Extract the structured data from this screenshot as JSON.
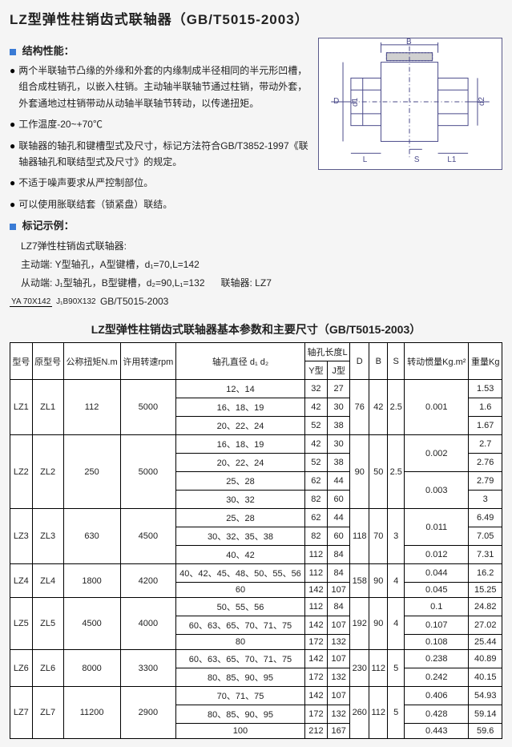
{
  "title": "LZ型弹性柱销齿式联轴器（GB/T5015-2003）",
  "sections": {
    "structural": "结构性能：",
    "example": "标记示例："
  },
  "bullets": [
    "两个半联轴节凸缘的外缘和外套的内缘制成半径相同的半元形凹槽，组合成柱销孔，以嵌入柱销。主动轴半联轴节通过柱销，带动外套，外套通地过柱销带动从动轴半联轴节转动，以传递扭矩。",
    "工作温度-20~+70℃",
    "联轴器的轴孔和键槽型式及尺寸，标记方法符合GB/T3852-1997《联轴器轴孔和联结型式及尺寸》的规定。",
    "不适于噪声要求从严控制部位。",
    "可以使用胀联结套（锁紧盘）联结。"
  ],
  "example": {
    "line1": "LZ7弹性柱销齿式联轴器:",
    "line2": "主动端: Y型轴孔，A型键槽，d₁=70,L=142",
    "line3": "从动端: J₁型轴孔，B型键槽，d₂=90,L₁=132",
    "line4_prefix": "联轴器: LZ7",
    "frac_top": "YA 70X142",
    "frac_bot": "J₁B90X132",
    "line4_suffix": "GB/T5015-2003"
  },
  "diagram_labels": {
    "B": "B",
    "D": "D",
    "d1": "d1",
    "d2": "d2",
    "L": "L",
    "S": "S",
    "L1": "L1"
  },
  "table_title": "LZ型弹性柱销齿式联轴器基本参数和主要尺寸（GB/T5015-2003）",
  "table": {
    "headers": {
      "model": "型号",
      "orig": "原型号",
      "torque": "公称扭矩N.m",
      "rpm": "许用转速rpm",
      "bore": "轴孔直径 d₁ d₂",
      "boreLen": "轴孔长度L",
      "Y": "Y型",
      "J": "J型",
      "D": "D",
      "B": "B",
      "S": "S",
      "inertia": "转动惯量Kg.m²",
      "weight": "重量Kg"
    },
    "rows": [
      {
        "model": "LZ1",
        "orig": "ZL1",
        "torque": "112",
        "rpm": "5000",
        "D": "76",
        "B": "42",
        "S": "2.5",
        "sub": [
          {
            "bore": "12、14",
            "Y": "32",
            "J": "27",
            "inertia": "0.001",
            "weight": "1.53",
            "ispan": 3
          },
          {
            "bore": "16、18、19",
            "Y": "42",
            "J": "30",
            "weight": "1.6"
          },
          {
            "bore": "20、22、24",
            "Y": "52",
            "J": "38",
            "weight": "1.67"
          }
        ]
      },
      {
        "model": "LZ2",
        "orig": "ZL2",
        "torque": "250",
        "rpm": "5000",
        "D": "90",
        "B": "50",
        "S": "2.5",
        "sub": [
          {
            "bore": "16、18、19",
            "Y": "42",
            "J": "30",
            "inertia": "0.002",
            "weight": "2.7",
            "ispan": 2
          },
          {
            "bore": "20、22、24",
            "Y": "52",
            "J": "38",
            "weight": "2.76"
          },
          {
            "bore": "25、28",
            "Y": "62",
            "J": "44",
            "inertia": "0.003",
            "weight": "2.79",
            "ispan": 2
          },
          {
            "bore": "30、32",
            "Y": "82",
            "J": "60",
            "weight": "3"
          }
        ]
      },
      {
        "model": "LZ3",
        "orig": "ZL3",
        "torque": "630",
        "rpm": "4500",
        "D": "118",
        "B": "70",
        "S": "3",
        "sub": [
          {
            "bore": "25、28",
            "Y": "62",
            "J": "44",
            "inertia": "0.011",
            "weight": "6.49",
            "ispan": 2
          },
          {
            "bore": "30、32、35、38",
            "Y": "82",
            "J": "60",
            "weight": "7.05"
          },
          {
            "bore": "40、42",
            "Y": "112",
            "J": "84",
            "inertia": "0.012",
            "weight": "7.31",
            "ispan": 1
          }
        ]
      },
      {
        "model": "LZ4",
        "orig": "ZL4",
        "torque": "1800",
        "rpm": "4200",
        "D": "158",
        "B": "90",
        "S": "4",
        "sub": [
          {
            "bore": "40、42、45、48、50、55、56",
            "Y": "112",
            "J": "84",
            "inertia": "0.044",
            "weight": "16.2",
            "ispan": 1
          },
          {
            "bore": "60",
            "Y": "142",
            "J": "107",
            "inertia": "0.045",
            "weight": "15.25",
            "ispan": 1
          }
        ]
      },
      {
        "model": "LZ5",
        "orig": "ZL5",
        "torque": "4500",
        "rpm": "4000",
        "D": "192",
        "B": "90",
        "S": "4",
        "sub": [
          {
            "bore": "50、55、56",
            "Y": "112",
            "J": "84",
            "inertia": "0.1",
            "weight": "24.82",
            "ispan": 1
          },
          {
            "bore": "60、63、65、70、71、75",
            "Y": "142",
            "J": "107",
            "inertia": "0.107",
            "weight": "27.02",
            "ispan": 1
          },
          {
            "bore": "80",
            "Y": "172",
            "J": "132",
            "inertia": "0.108",
            "weight": "25.44",
            "ispan": 1
          }
        ]
      },
      {
        "model": "LZ6",
        "orig": "ZL6",
        "torque": "8000",
        "rpm": "3300",
        "D": "230",
        "B": "112",
        "S": "5",
        "sub": [
          {
            "bore": "60、63、65、70、71、75",
            "Y": "142",
            "J": "107",
            "inertia": "0.238",
            "weight": "40.89",
            "ispan": 1
          },
          {
            "bore": "80、85、90、95",
            "Y": "172",
            "J": "132",
            "inertia": "0.242",
            "weight": "40.15",
            "ispan": 1
          }
        ]
      },
      {
        "model": "LZ7",
        "orig": "ZL7",
        "torque": "11200",
        "rpm": "2900",
        "D": "260",
        "B": "112",
        "S": "5",
        "sub": [
          {
            "bore": "70、71、75",
            "Y": "142",
            "J": "107",
            "inertia": "0.406",
            "weight": "54.93",
            "ispan": 1
          },
          {
            "bore": "80、85、90、95",
            "Y": "172",
            "J": "132",
            "inertia": "0.428",
            "weight": "59.14",
            "ispan": 1
          },
          {
            "bore": "100",
            "Y": "212",
            "J": "167",
            "inertia": "0.443",
            "weight": "59.6",
            "ispan": 1
          }
        ]
      }
    ]
  },
  "colors": {
    "bg": "#f5f5f5",
    "accent": "#3a7bd5",
    "border": "#000000"
  }
}
